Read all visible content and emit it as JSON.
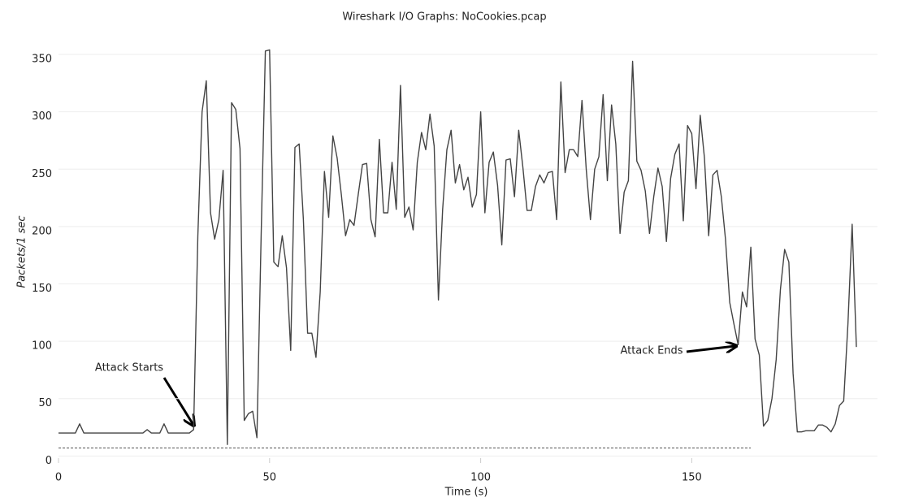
{
  "chart_data": {
    "type": "line",
    "title": "Wireshark I/O Graphs: NoCookies.pcap",
    "x_label": "Time (s)",
    "y_label": "Packets/1 sec",
    "annotations": [
      "Attack Starts",
      "Attack Ends"
    ],
    "xlim": [
      0,
      194
    ],
    "xticks": [
      0,
      50,
      100,
      150
    ],
    "ylim": [
      -4,
      355
    ],
    "yticks": [
      0,
      50,
      100,
      150,
      200,
      250,
      300,
      350
    ],
    "grid": true,
    "series": [
      {
        "color": "#444444",
        "dashed": false,
        "x": [
          0,
          1,
          2,
          3,
          4,
          5,
          6,
          7,
          8,
          9,
          10,
          11,
          12,
          13,
          14,
          15,
          16,
          17,
          18,
          19,
          20,
          21,
          22,
          23,
          24,
          25,
          26,
          27,
          28,
          29,
          30,
          31,
          32,
          33,
          34,
          35,
          36,
          37,
          38,
          39,
          40,
          41,
          42,
          43,
          44,
          45,
          46,
          47,
          48,
          49,
          50,
          51,
          52,
          53,
          54,
          55,
          56,
          57,
          58,
          59,
          60,
          61,
          62,
          63,
          64,
          65,
          66,
          67,
          68,
          69,
          70,
          71,
          72,
          73,
          74,
          75,
          76,
          77,
          78,
          79,
          80,
          81,
          82,
          83,
          84,
          85,
          86,
          87,
          88,
          89,
          90,
          91,
          92,
          93,
          94,
          95,
          96,
          97,
          98,
          99,
          100,
          101,
          102,
          103,
          104,
          105,
          106,
          107,
          108,
          109,
          110,
          111,
          112,
          113,
          114,
          115,
          116,
          117,
          118,
          119,
          120,
          121,
          122,
          123,
          124,
          125,
          126,
          127,
          128,
          129,
          130,
          131,
          132,
          133,
          134,
          135,
          136,
          137,
          138,
          139,
          140,
          141,
          142,
          143,
          144,
          145,
          146,
          147,
          148,
          149,
          150,
          151,
          152,
          153,
          154,
          155,
          156,
          157,
          158,
          159,
          160,
          161,
          162,
          163,
          164,
          165,
          166,
          167,
          168,
          169,
          170,
          171,
          172,
          173,
          174,
          175,
          176,
          177,
          178,
          179,
          180,
          181,
          182,
          183,
          184,
          185,
          186,
          187,
          188,
          189
        ],
        "values": [
          20,
          20,
          20,
          20,
          20,
          28,
          20,
          20,
          20,
          20,
          20,
          20,
          20,
          20,
          20,
          20,
          20,
          20,
          20,
          20,
          20,
          23,
          20,
          20,
          20,
          28,
          20,
          20,
          20,
          20,
          20,
          20,
          23,
          192,
          300,
          327,
          212,
          189,
          206,
          249,
          10,
          308,
          302,
          268,
          31,
          37,
          39,
          16,
          192,
          353,
          354,
          169,
          165,
          192,
          164,
          92,
          269,
          272,
          206,
          107,
          107,
          86,
          143,
          248,
          208,
          279,
          260,
          228,
          192,
          206,
          201,
          228,
          254,
          255,
          206,
          191,
          276,
          212,
          212,
          256,
          215,
          323,
          208,
          217,
          197,
          256,
          282,
          267,
          298,
          270,
          136,
          215,
          267,
          284,
          238,
          254,
          232,
          243,
          217,
          228,
          300,
          212,
          256,
          265,
          236,
          184,
          258,
          259,
          226,
          284,
          252,
          214,
          214,
          235,
          245,
          238,
          247,
          248,
          206,
          326,
          247,
          267,
          267,
          261,
          310,
          250,
          206,
          250,
          261,
          315,
          240,
          306,
          272,
          194,
          230,
          240,
          344,
          257,
          249,
          231,
          194,
          226,
          251,
          235,
          187,
          242,
          263,
          272,
          205,
          288,
          281,
          233,
          297,
          260,
          192,
          245,
          249,
          226,
          189,
          134,
          115,
          97,
          143,
          130,
          182,
          102,
          88,
          26,
          31,
          50,
          84,
          145,
          180,
          169,
          72,
          21,
          21,
          22,
          22,
          22,
          27,
          27,
          25,
          21,
          28,
          44,
          48,
          115,
          202,
          95
        ]
      },
      {
        "color": "#555555",
        "dashed": true,
        "x": [
          0,
          164
        ],
        "values": [
          7,
          7
        ]
      }
    ]
  }
}
